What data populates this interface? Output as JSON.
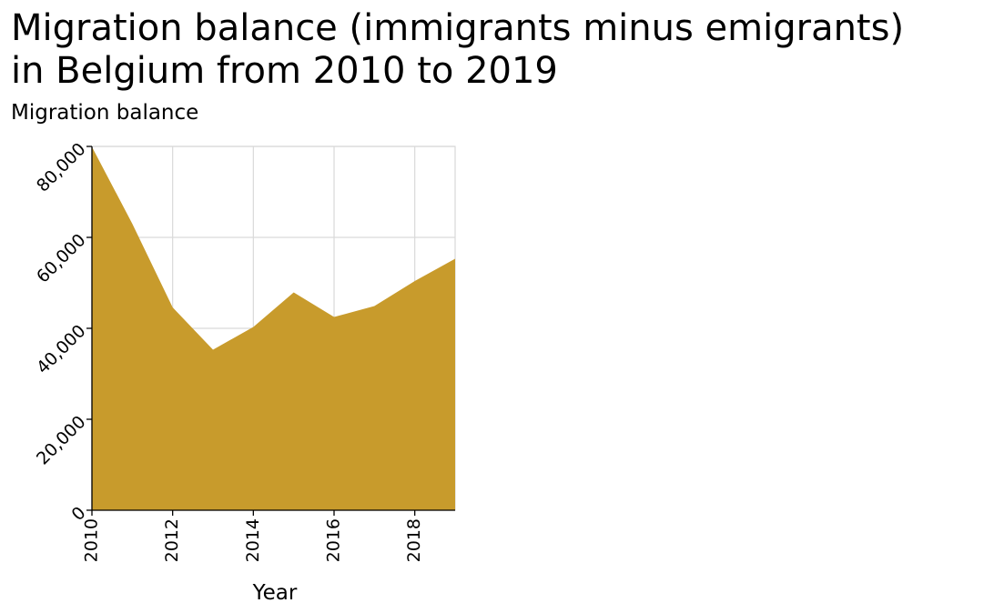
{
  "chart_data": {
    "type": "area",
    "title_lines": [
      "Migration balance (immigrants minus emigrants)",
      "in Belgium from 2010 to 2019"
    ],
    "xlabel": "Year",
    "ylabel": "Migration balance",
    "x": [
      2010,
      2011,
      2012,
      2013,
      2014,
      2015,
      2016,
      2017,
      2018,
      2019
    ],
    "series": [
      {
        "values": [
          79900,
          63000,
          44600,
          35300,
          40300,
          47900,
          42500,
          44900,
          50400,
          55300
        ]
      }
    ],
    "xlim": [
      2010,
      2019
    ],
    "ylim": [
      0,
      80000
    ],
    "x_ticks": [
      "2010",
      "2012",
      "2014",
      "2016",
      "2018"
    ],
    "y_ticks": [
      "0",
      "20,000",
      "40,000",
      "60,000",
      "80,000"
    ],
    "grid": true,
    "colors": {
      "fill": "#c89b2c",
      "grid": "#d9d9d9",
      "axis": "#000000"
    }
  }
}
